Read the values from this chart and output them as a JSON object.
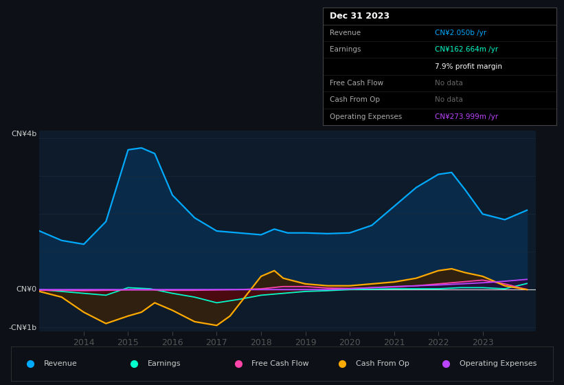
{
  "bg_color": "#0d1117",
  "chart_bg": "#0d1b2a",
  "ylabel_top": "CN¥4b",
  "ylabel_zero": "CN¥0",
  "ylabel_bottom": "-CN¥1b",
  "ylim": [
    -1100000000,
    4200000000
  ],
  "xlim": [
    2013.0,
    2024.2
  ],
  "x_ticks": [
    2014,
    2015,
    2016,
    2017,
    2018,
    2019,
    2020,
    2021,
    2022,
    2023
  ],
  "revenue_color": "#00aaff",
  "earnings_color": "#00ffcc",
  "fcf_color": "#ff44aa",
  "cashfromop_color": "#ffaa00",
  "opex_color": "#bb44ff",
  "zero_line_color": "#cccccc",
  "grid_color": "#1a2a3a",
  "info_box": {
    "title": "Dec 31 2023",
    "rows": [
      {
        "label": "Revenue",
        "value": "CN¥2.050b /yr",
        "value_color": "#00aaff"
      },
      {
        "label": "Earnings",
        "value": "CN¥162.664m /yr",
        "value_color": "#00ffcc"
      },
      {
        "label": "",
        "value": "7.9% profit margin",
        "value_color": "#ffffff"
      },
      {
        "label": "Free Cash Flow",
        "value": "No data",
        "value_color": "#666666"
      },
      {
        "label": "Cash From Op",
        "value": "No data",
        "value_color": "#666666"
      },
      {
        "label": "Operating Expenses",
        "value": "CN¥273.999m /yr",
        "value_color": "#bb44ff"
      }
    ]
  },
  "legend": [
    {
      "label": "Revenue",
      "color": "#00aaff"
    },
    {
      "label": "Earnings",
      "color": "#00ffcc"
    },
    {
      "label": "Free Cash Flow",
      "color": "#ff44aa"
    },
    {
      "label": "Cash From Op",
      "color": "#ffaa00"
    },
    {
      "label": "Operating Expenses",
      "color": "#bb44ff"
    }
  ],
  "revenue": {
    "x": [
      2013.0,
      2013.5,
      2014.0,
      2014.5,
      2015.0,
      2015.3,
      2015.6,
      2016.0,
      2016.5,
      2017.0,
      2017.5,
      2018.0,
      2018.3,
      2018.6,
      2019.0,
      2019.5,
      2020.0,
      2020.5,
      2021.0,
      2021.5,
      2022.0,
      2022.3,
      2022.6,
      2023.0,
      2023.5,
      2024.0
    ],
    "y": [
      1550000000,
      1300000000,
      1200000000,
      1800000000,
      3700000000,
      3750000000,
      3600000000,
      2500000000,
      1900000000,
      1550000000,
      1500000000,
      1450000000,
      1600000000,
      1500000000,
      1500000000,
      1480000000,
      1500000000,
      1700000000,
      2200000000,
      2700000000,
      3050000000,
      3100000000,
      2650000000,
      2000000000,
      1850000000,
      2100000000
    ]
  },
  "earnings": {
    "x": [
      2013.0,
      2013.5,
      2014.0,
      2014.5,
      2015.0,
      2015.5,
      2016.0,
      2016.5,
      2017.0,
      2017.5,
      2018.0,
      2018.5,
      2019.0,
      2019.5,
      2020.0,
      2020.5,
      2021.0,
      2021.5,
      2022.0,
      2022.5,
      2023.0,
      2023.5,
      2024.0
    ],
    "y": [
      0,
      -50000000,
      -100000000,
      -150000000,
      50000000,
      20000000,
      -100000000,
      -200000000,
      -350000000,
      -260000000,
      -150000000,
      -100000000,
      -50000000,
      -30000000,
      0,
      10000000,
      20000000,
      20000000,
      20000000,
      50000000,
      50000000,
      20000000,
      160000000
    ]
  },
  "fcf": {
    "x": [
      2013.0,
      2013.5,
      2014.0,
      2014.5,
      2015.0,
      2015.5,
      2016.0,
      2016.5,
      2017.0,
      2017.5,
      2018.0,
      2018.5,
      2019.0,
      2019.5,
      2020.0,
      2020.5,
      2021.0,
      2021.5,
      2022.0,
      2022.5,
      2023.0,
      2023.5,
      2024.0
    ],
    "y": [
      -20000000,
      -20000000,
      -30000000,
      -20000000,
      -10000000,
      -10000000,
      -20000000,
      -20000000,
      -10000000,
      0,
      20000000,
      80000000,
      80000000,
      40000000,
      30000000,
      50000000,
      70000000,
      100000000,
      150000000,
      200000000,
      250000000,
      150000000,
      0
    ]
  },
  "cashfromop": {
    "x": [
      2013.0,
      2013.5,
      2014.0,
      2014.5,
      2015.0,
      2015.3,
      2015.6,
      2016.0,
      2016.5,
      2017.0,
      2017.3,
      2017.5,
      2018.0,
      2018.3,
      2018.5,
      2019.0,
      2019.5,
      2020.0,
      2020.5,
      2021.0,
      2021.5,
      2022.0,
      2022.3,
      2022.6,
      2023.0,
      2023.5,
      2024.0
    ],
    "y": [
      -50000000,
      -200000000,
      -600000000,
      -900000000,
      -700000000,
      -600000000,
      -350000000,
      -550000000,
      -850000000,
      -950000000,
      -700000000,
      -400000000,
      350000000,
      500000000,
      300000000,
      150000000,
      100000000,
      100000000,
      150000000,
      200000000,
      300000000,
      500000000,
      550000000,
      450000000,
      350000000,
      100000000,
      0
    ]
  },
  "opex": {
    "x": [
      2013.0,
      2013.5,
      2014.0,
      2014.5,
      2015.0,
      2015.5,
      2016.0,
      2016.5,
      2017.0,
      2017.5,
      2018.0,
      2018.5,
      2019.0,
      2019.5,
      2020.0,
      2020.5,
      2021.0,
      2021.5,
      2022.0,
      2022.5,
      2023.0,
      2023.5,
      2024.0
    ],
    "y": [
      0,
      0,
      0,
      0,
      0,
      0,
      0,
      0,
      0,
      0,
      0,
      0,
      0,
      0,
      20000000,
      50000000,
      80000000,
      100000000,
      120000000,
      150000000,
      180000000,
      220000000,
      270000000
    ]
  }
}
